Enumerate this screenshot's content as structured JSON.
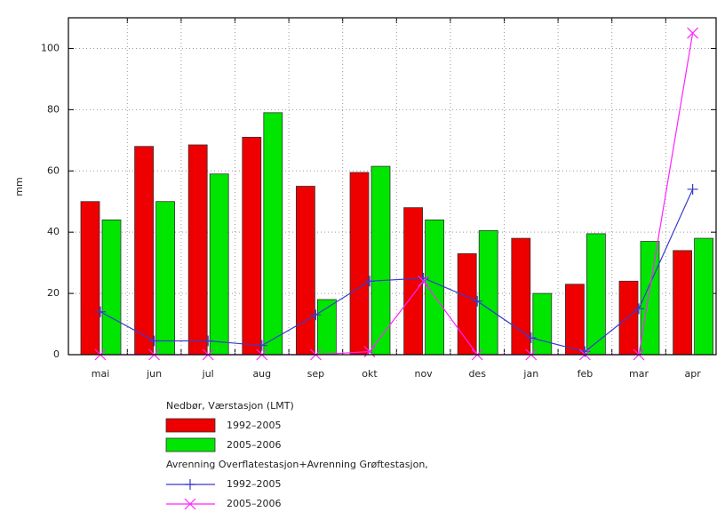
{
  "chart_data": {
    "type": "bar",
    "ylabel": "mm",
    "categories": [
      "mai",
      "jun",
      "jul",
      "aug",
      "sep",
      "okt",
      "nov",
      "des",
      "jan",
      "feb",
      "mar",
      "apr"
    ],
    "ylim": [
      0,
      110
    ],
    "yticks": [
      0,
      20,
      40,
      60,
      80,
      100
    ],
    "grid": true,
    "groups": [
      {
        "title": "Nedbør, Værstasjon (LMT)",
        "type": "bar",
        "series": [
          {
            "name": "1992–2005",
            "color": "#ee0000",
            "values": [
              50,
              68,
              68.5,
              71,
              55,
              59.5,
              48,
              33,
              38,
              23,
              24,
              34
            ]
          },
          {
            "name": "2005–2006",
            "color": "#00e600",
            "values": [
              44,
              50,
              59,
              79,
              18,
              61.5,
              44,
              40.5,
              20,
              39.5,
              37,
              38
            ]
          }
        ]
      },
      {
        "title": "Avrenning Overflatestasjon+Avrenning Grøftestasjon,",
        "type": "line",
        "series": [
          {
            "name": "1992–2005",
            "color": "#3a3acc",
            "marker": "plus",
            "values": [
              14,
              4.5,
              4.5,
              3,
              13,
              24,
              25,
              17.5,
              5.5,
              1,
              15,
              54
            ]
          },
          {
            "name": "2005–2006",
            "color": "#ff22ff",
            "marker": "cross",
            "values": [
              0,
              0,
              0,
              0,
              0,
              1,
              24,
              0,
              0,
              0,
              0,
              105
            ]
          }
        ]
      }
    ]
  }
}
